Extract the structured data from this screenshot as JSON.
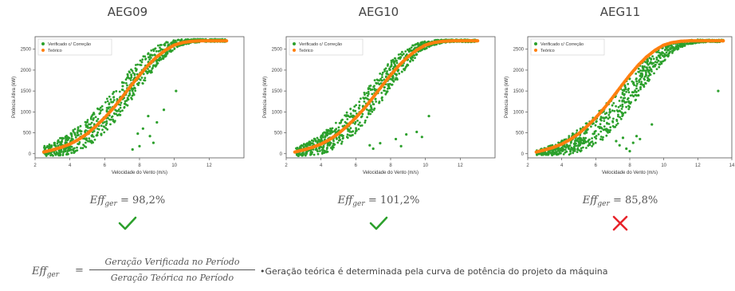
{
  "chart_data": [
    {
      "type": "scatter",
      "title": "AEG09",
      "xlabel": "Velocidade do Vento (m/s)",
      "ylabel": "Potência Ativa (kW)",
      "xlim": [
        2,
        14
      ],
      "ylim": [
        -100,
        2800
      ],
      "xticks": [
        2,
        4,
        6,
        8,
        10,
        12
      ],
      "yticks": [
        0,
        500,
        1000,
        1500,
        2000,
        2500
      ],
      "legend_position": "top-left",
      "series": [
        {
          "name": "Verificado c/ Correção",
          "color": "#2ca02c",
          "x": [
            2.5,
            3,
            3.5,
            4,
            4.5,
            5,
            5.5,
            6,
            6.5,
            7,
            7.5,
            8,
            8.5,
            9,
            9.5,
            10,
            10.5,
            11,
            11.5,
            12,
            12.5,
            13
          ],
          "y": [
            60,
            110,
            170,
            250,
            360,
            500,
            680,
            880,
            1110,
            1370,
            1640,
            1900,
            2140,
            2340,
            2500,
            2610,
            2670,
            2700,
            2710,
            2710,
            2710,
            2710
          ],
          "band": [
            120,
            160,
            220,
            260,
            300,
            330,
            360,
            380,
            400,
            400,
            380,
            350,
            300,
            240,
            170,
            110,
            70,
            50,
            40,
            30,
            30,
            30
          ]
        },
        {
          "name": "Teórico",
          "color": "#ff7f0e",
          "x": [
            2.5,
            3,
            3.5,
            4,
            4.5,
            5,
            5.5,
            6,
            6.5,
            7,
            7.5,
            8,
            8.5,
            9,
            9.5,
            10,
            10.5,
            11,
            11.5,
            12,
            12.5,
            13
          ],
          "y": [
            40,
            90,
            150,
            230,
            340,
            480,
            660,
            860,
            1090,
            1350,
            1620,
            1880,
            2120,
            2320,
            2480,
            2600,
            2660,
            2690,
            2700,
            2700,
            2700,
            2700
          ]
        }
      ],
      "outliers": [
        [
          8.2,
          600
        ],
        [
          8.6,
          420
        ],
        [
          9.0,
          750
        ],
        [
          8.0,
          180
        ],
        [
          7.6,
          100
        ],
        [
          9.4,
          1050
        ],
        [
          8.8,
          260
        ],
        [
          10.1,
          1500
        ],
        [
          7.9,
          480
        ],
        [
          8.5,
          900
        ]
      ]
    },
    {
      "type": "scatter",
      "title": "AEG10",
      "xlabel": "Velocidade do Vento (m/s)",
      "ylabel": "Potência Ativa (kW)",
      "xlim": [
        2,
        14
      ],
      "ylim": [
        -100,
        2800
      ],
      "xticks": [
        2,
        4,
        6,
        8,
        10,
        12
      ],
      "yticks": [
        0,
        500,
        1000,
        1500,
        2000,
        2500
      ],
      "legend_position": "top-left",
      "series": [
        {
          "name": "Verificado c/ Correção",
          "color": "#2ca02c",
          "x": [
            2.5,
            3,
            3.5,
            4,
            4.5,
            5,
            5.5,
            6,
            6.5,
            7,
            7.5,
            8,
            8.5,
            9,
            9.5,
            10,
            10.5,
            11,
            11.5,
            12,
            12.5,
            13
          ],
          "y": [
            40,
            90,
            150,
            230,
            340,
            480,
            660,
            860,
            1090,
            1350,
            1620,
            1880,
            2120,
            2320,
            2480,
            2600,
            2660,
            2690,
            2700,
            2700,
            2700,
            2700
          ],
          "band": [
            100,
            140,
            190,
            240,
            280,
            310,
            340,
            360,
            380,
            380,
            360,
            330,
            280,
            220,
            160,
            100,
            60,
            40,
            30,
            30,
            30,
            30
          ]
        },
        {
          "name": "Teórico",
          "color": "#ff7f0e",
          "x": [
            2.5,
            3,
            3.5,
            4,
            4.5,
            5,
            5.5,
            6,
            6.5,
            7,
            7.5,
            8,
            8.5,
            9,
            9.5,
            10,
            10.5,
            11,
            11.5,
            12,
            12.5,
            13
          ],
          "y": [
            40,
            90,
            150,
            230,
            340,
            480,
            660,
            860,
            1090,
            1350,
            1620,
            1880,
            2120,
            2320,
            2480,
            2600,
            2660,
            2690,
            2700,
            2700,
            2700,
            2700
          ]
        }
      ],
      "outliers": [
        [
          6.8,
          200
        ],
        [
          7.4,
          250
        ],
        [
          8.3,
          350
        ],
        [
          8.9,
          460
        ],
        [
          9.5,
          520
        ],
        [
          10.2,
          900
        ],
        [
          9.8,
          400
        ],
        [
          13.0,
          2700
        ],
        [
          7.0,
          120
        ],
        [
          8.6,
          180
        ]
      ]
    },
    {
      "type": "scatter",
      "title": "AEG11",
      "xlabel": "Velocidade do Vento (m/s)",
      "ylabel": "Potência Ativa (kW)",
      "xlim": [
        2,
        14
      ],
      "ylim": [
        -100,
        2800
      ],
      "xticks": [
        2,
        4,
        6,
        8,
        10,
        12,
        14
      ],
      "yticks": [
        0,
        500,
        1000,
        1500,
        2000,
        2500
      ],
      "legend_position": "top-left",
      "series": [
        {
          "name": "Verificado c/ Correção",
          "color": "#2ca02c",
          "x": [
            2.5,
            3,
            3.5,
            4,
            4.5,
            5,
            5.5,
            6,
            6.5,
            7,
            7.5,
            8,
            8.5,
            9,
            9.5,
            10,
            10.5,
            11,
            11.5,
            12,
            12.5,
            13,
            13.5
          ],
          "y": [
            20,
            50,
            90,
            140,
            210,
            310,
            430,
            580,
            760,
            970,
            1210,
            1470,
            1730,
            1980,
            2200,
            2390,
            2530,
            2620,
            2670,
            2690,
            2700,
            2700,
            2700
          ],
          "band": [
            60,
            90,
            130,
            180,
            230,
            280,
            320,
            360,
            400,
            420,
            420,
            400,
            360,
            310,
            250,
            190,
            130,
            80,
            50,
            40,
            30,
            30,
            30
          ]
        },
        {
          "name": "Teórico",
          "color": "#ff7f0e",
          "x": [
            2.5,
            3,
            3.5,
            4,
            4.5,
            5,
            5.5,
            6,
            6.5,
            7,
            7.5,
            8,
            8.5,
            9,
            9.5,
            10,
            10.5,
            11,
            11.5,
            12,
            12.5,
            13,
            13.5
          ],
          "y": [
            40,
            90,
            150,
            230,
            340,
            480,
            660,
            860,
            1090,
            1350,
            1620,
            1880,
            2120,
            2320,
            2480,
            2600,
            2660,
            2690,
            2700,
            2700,
            2700,
            2700,
            2700
          ]
        }
      ],
      "outliers": [
        [
          7.4,
          200
        ],
        [
          7.8,
          120
        ],
        [
          8.2,
          260
        ],
        [
          8.6,
          350
        ],
        [
          8.0,
          60
        ],
        [
          7.2,
          300
        ],
        [
          13.2,
          1500
        ],
        [
          9.3,
          700
        ],
        [
          8.4,
          420
        ],
        [
          7.6,
          380
        ]
      ]
    }
  ],
  "panels": [
    {
      "efficiency": "= 98,2%",
      "status": "ok"
    },
    {
      "efficiency": "= 101,2%",
      "status": "ok"
    },
    {
      "efficiency": "= 85,8%",
      "status": "fail"
    }
  ],
  "eff_symbol": "Eff",
  "eff_subscript": "ger",
  "formula": {
    "equals": "=",
    "numerator": "Geração Verificada no Período",
    "denominator": "Geração Teórica no Período"
  },
  "note": "•Geração teórica é determinada pela curva de potência do projeto da máquina",
  "colors": {
    "check": "#2ca02c",
    "cross": "#e8232a",
    "verified": "#2ca02c",
    "theoretical": "#ff7f0e"
  },
  "icons": {
    "ok": "check-icon",
    "fail": "cross-icon"
  }
}
